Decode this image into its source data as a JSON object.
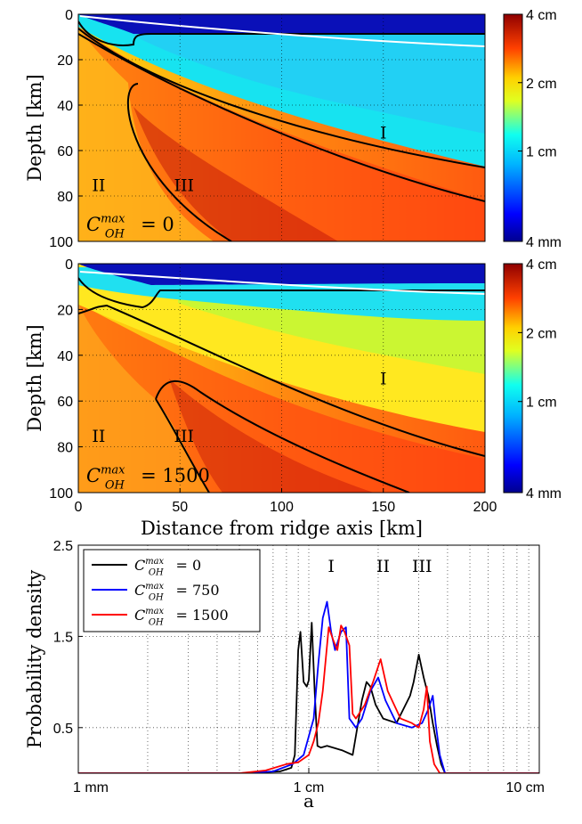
{
  "chart_data": [
    {
      "type": "heatmap",
      "panel": "top",
      "ylabel": "Depth [km]",
      "xlim": [
        0,
        200
      ],
      "ylim": [
        0,
        100
      ],
      "y_ticks": [
        "0",
        "20",
        "40",
        "60",
        "80",
        "100"
      ],
      "annotation": {
        "base": "C",
        "sup": "max",
        "sub": "OH",
        "rest": "= 0"
      },
      "region_labels": [
        {
          "text": "I",
          "x": 150,
          "y": 52
        },
        {
          "text": "II",
          "x": 10,
          "y": 75
        },
        {
          "text": "III",
          "x": 52,
          "y": 75
        }
      ],
      "colorbar": {
        "scale": "log",
        "ticks": [
          "4 cm",
          "2 cm",
          "1 cm",
          "4 mm"
        ],
        "tick_values_cm": [
          4,
          2,
          1,
          0.4
        ]
      }
    },
    {
      "type": "heatmap",
      "panel": "middle",
      "ylabel": "Depth [km]",
      "xlabel": "Distance from ridge axis [km]",
      "xlim": [
        0,
        200
      ],
      "ylim": [
        0,
        100
      ],
      "x_ticks": [
        "0",
        "50",
        "100",
        "150",
        "200"
      ],
      "y_ticks": [
        "0",
        "20",
        "40",
        "60",
        "80",
        "100"
      ],
      "annotation": {
        "base": "C",
        "sup": "max",
        "sub": "OH",
        "rest": "= 1500"
      },
      "region_labels": [
        {
          "text": "I",
          "x": 150,
          "y": 50
        },
        {
          "text": "II",
          "x": 10,
          "y": 75
        },
        {
          "text": "III",
          "x": 52,
          "y": 75
        }
      ],
      "colorbar": {
        "scale": "log",
        "ticks": [
          "4 cm",
          "2 cm",
          "1 cm",
          "4 mm"
        ],
        "tick_values_cm": [
          4,
          2,
          1,
          0.4
        ]
      }
    },
    {
      "type": "line",
      "panel": "bottom",
      "xlabel": "a",
      "ylabel": "Probability density",
      "x_scale": "log",
      "xlim_cm": [
        0.1,
        10
      ],
      "ylim": [
        0,
        2.5
      ],
      "x_ticks": [
        "1 mm",
        "1 cm",
        "10 cm"
      ],
      "y_ticks": [
        "0.5",
        "1.5",
        "2.5"
      ],
      "peak_labels": [
        {
          "text": "I",
          "x_cm": 1.25
        },
        {
          "text": "II",
          "x_cm": 2.1
        },
        {
          "text": "III",
          "x_cm": 3.1
        }
      ],
      "series": [
        {
          "name": "C_OH^max = 0",
          "legend": {
            "base": "C",
            "sup": "max",
            "sub": "OH",
            "rest": "= 0"
          },
          "color": "#000000",
          "x_cm": [
            0.1,
            0.5,
            0.75,
            0.84,
            0.87,
            0.9,
            0.92,
            0.95,
            0.98,
            1.0,
            1.03,
            1.06,
            1.09,
            1.13,
            1.2,
            1.4,
            1.55,
            1.7,
            1.78,
            1.85,
            1.95,
            2.1,
            2.4,
            2.75,
            2.85,
            3.0,
            3.15,
            3.3,
            3.45,
            3.6,
            3.75,
            3.9,
            10
          ],
          "y": [
            0,
            0,
            0.02,
            0.06,
            0.2,
            1.35,
            1.55,
            1.0,
            0.95,
            1.02,
            1.65,
            0.9,
            0.3,
            0.28,
            0.3,
            0.25,
            0.2,
            0.8,
            1.0,
            0.95,
            0.75,
            0.6,
            0.55,
            0.85,
            1.0,
            1.3,
            1.05,
            0.85,
            0.55,
            0.3,
            0.1,
            0,
            0
          ]
        },
        {
          "name": "C_OH^max = 750",
          "legend": {
            "base": "C",
            "sup": "max",
            "sub": "OH",
            "rest": "= 750"
          },
          "color": "#0000ff",
          "x_cm": [
            0.1,
            0.5,
            0.7,
            0.85,
            0.95,
            1.05,
            1.1,
            1.15,
            1.2,
            1.25,
            1.3,
            1.38,
            1.45,
            1.5,
            1.55,
            1.6,
            1.7,
            1.85,
            2.0,
            2.15,
            2.4,
            2.8,
            3.1,
            3.3,
            3.45,
            3.55,
            3.7,
            3.9,
            10
          ],
          "y": [
            0,
            0,
            0.02,
            0.1,
            0.2,
            0.6,
            1.2,
            1.7,
            1.88,
            1.55,
            1.35,
            1.55,
            1.6,
            0.6,
            0.55,
            0.5,
            0.6,
            0.9,
            1.05,
            0.8,
            0.55,
            0.5,
            0.55,
            0.7,
            0.85,
            0.55,
            0.2,
            0,
            0
          ]
        },
        {
          "name": "C_OH^max = 1500",
          "legend": {
            "base": "C",
            "sup": "max",
            "sub": "OH",
            "rest": "= 1500"
          },
          "color": "#ff0000",
          "x_cm": [
            0.1,
            0.5,
            0.65,
            0.8,
            0.9,
            1.0,
            1.05,
            1.1,
            1.15,
            1.22,
            1.28,
            1.33,
            1.38,
            1.43,
            1.5,
            1.55,
            1.6,
            1.75,
            1.9,
            2.05,
            2.2,
            2.5,
            2.8,
            3.0,
            3.15,
            3.25,
            3.35,
            3.5,
            3.7,
            10
          ],
          "y": [
            0,
            0,
            0.03,
            0.1,
            0.12,
            0.2,
            0.35,
            0.55,
            0.9,
            1.6,
            1.45,
            1.35,
            1.62,
            1.55,
            1.4,
            0.65,
            0.6,
            0.75,
            1.0,
            1.25,
            0.9,
            0.6,
            0.55,
            0.5,
            0.7,
            0.95,
            0.35,
            0.1,
            0,
            0
          ]
        }
      ]
    }
  ]
}
